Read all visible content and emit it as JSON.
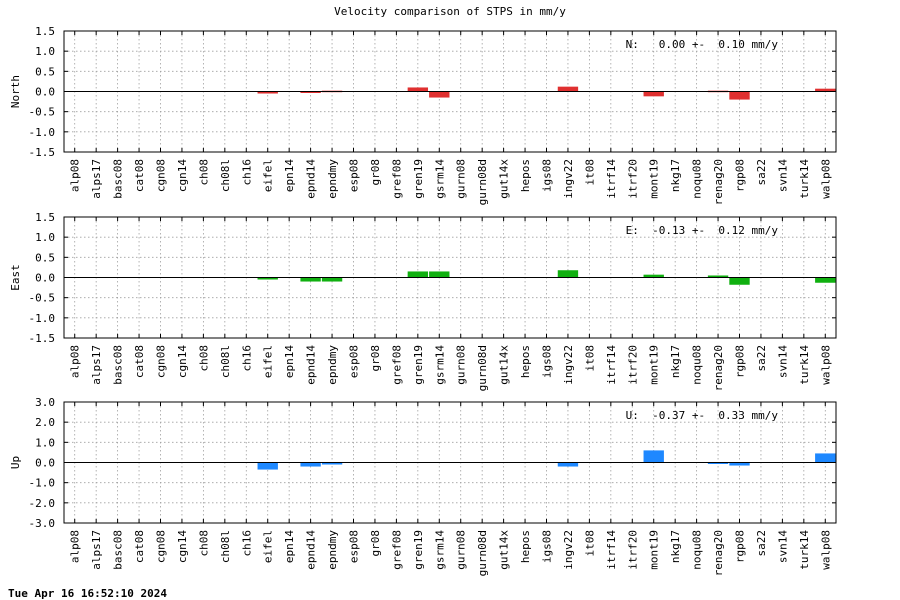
{
  "chart_data": {
    "title": "Velocity comparison of STPS in mm/y",
    "type": "bar",
    "categories": [
      "alp08",
      "alps17",
      "basc08",
      "cat08",
      "cgn08",
      "cgn14",
      "ch08",
      "ch08l",
      "ch16",
      "eifel",
      "epn14",
      "epnd14",
      "epndmy",
      "esp08",
      "gr08",
      "gref08",
      "gren19",
      "gsrm14",
      "gurn08",
      "gurn08d",
      "gut14x",
      "hepos",
      "igs08",
      "ingv22",
      "it08",
      "itrf14",
      "itrf20",
      "mont19",
      "nkg17",
      "noqu08",
      "renag20",
      "rgp08",
      "sa22",
      "svn14",
      "turk14",
      "walp08"
    ],
    "panels": [
      {
        "ylabel": "North",
        "ylim": [
          -1.5,
          1.5
        ],
        "yticks": [
          "1.5",
          "1.0",
          "0.5",
          "0.0",
          "-0.5",
          "-1.0",
          "-1.5"
        ],
        "tick_values": [
          1.5,
          1.0,
          0.5,
          0.0,
          -0.5,
          -1.0,
          -1.5
        ],
        "color": "#e03030",
        "annotation": "N:   0.00 +-  0.10 mm/y",
        "values": [
          0,
          0,
          0,
          0,
          0,
          0,
          0,
          0,
          0,
          -0.05,
          0,
          -0.03,
          0.02,
          0,
          0,
          0,
          0.1,
          -0.15,
          0,
          0,
          0,
          0,
          0,
          0.12,
          0,
          0,
          0,
          -0.12,
          0,
          0,
          0.02,
          -0.2,
          0,
          0,
          0,
          0.07
        ]
      },
      {
        "ylabel": "East",
        "ylim": [
          -1.5,
          1.5
        ],
        "yticks": [
          "1.5",
          "1.0",
          "0.5",
          "0.0",
          "-0.5",
          "-1.0",
          "-1.5"
        ],
        "tick_values": [
          1.5,
          1.0,
          0.5,
          0.0,
          -0.5,
          -1.0,
          -1.5
        ],
        "color": "#10b010",
        "annotation": "E:  -0.13 +-  0.12 mm/y",
        "values": [
          0,
          0,
          0,
          0,
          0,
          0,
          0,
          0,
          0,
          -0.05,
          0,
          -0.1,
          -0.1,
          0,
          0,
          0,
          0.15,
          0.15,
          0,
          0,
          0,
          0,
          0,
          0.18,
          0,
          0,
          0,
          0.07,
          0,
          0,
          0.05,
          -0.18,
          0,
          0,
          0,
          -0.13
        ]
      },
      {
        "ylabel": "Up",
        "ylim": [
          -3.0,
          3.0
        ],
        "yticks": [
          "3.0",
          "2.0",
          "1.0",
          "0.0",
          "-1.0",
          "-2.0",
          "-3.0"
        ],
        "tick_values": [
          3.0,
          2.0,
          1.0,
          0.0,
          -1.0,
          -2.0,
          -3.0
        ],
        "color": "#1e88ff",
        "annotation": "U:  -0.37 +-  0.33 mm/y",
        "values": [
          0,
          0,
          0,
          0,
          0,
          0,
          0,
          0,
          0,
          -0.35,
          0,
          -0.2,
          -0.1,
          0,
          0,
          0,
          0,
          0,
          0,
          0,
          0,
          0,
          0,
          -0.2,
          0,
          0,
          0,
          0.6,
          0,
          0,
          -0.05,
          -0.15,
          0,
          0,
          0,
          0.45
        ]
      }
    ]
  },
  "footer": "Tue Apr 16 16:52:10 2024"
}
